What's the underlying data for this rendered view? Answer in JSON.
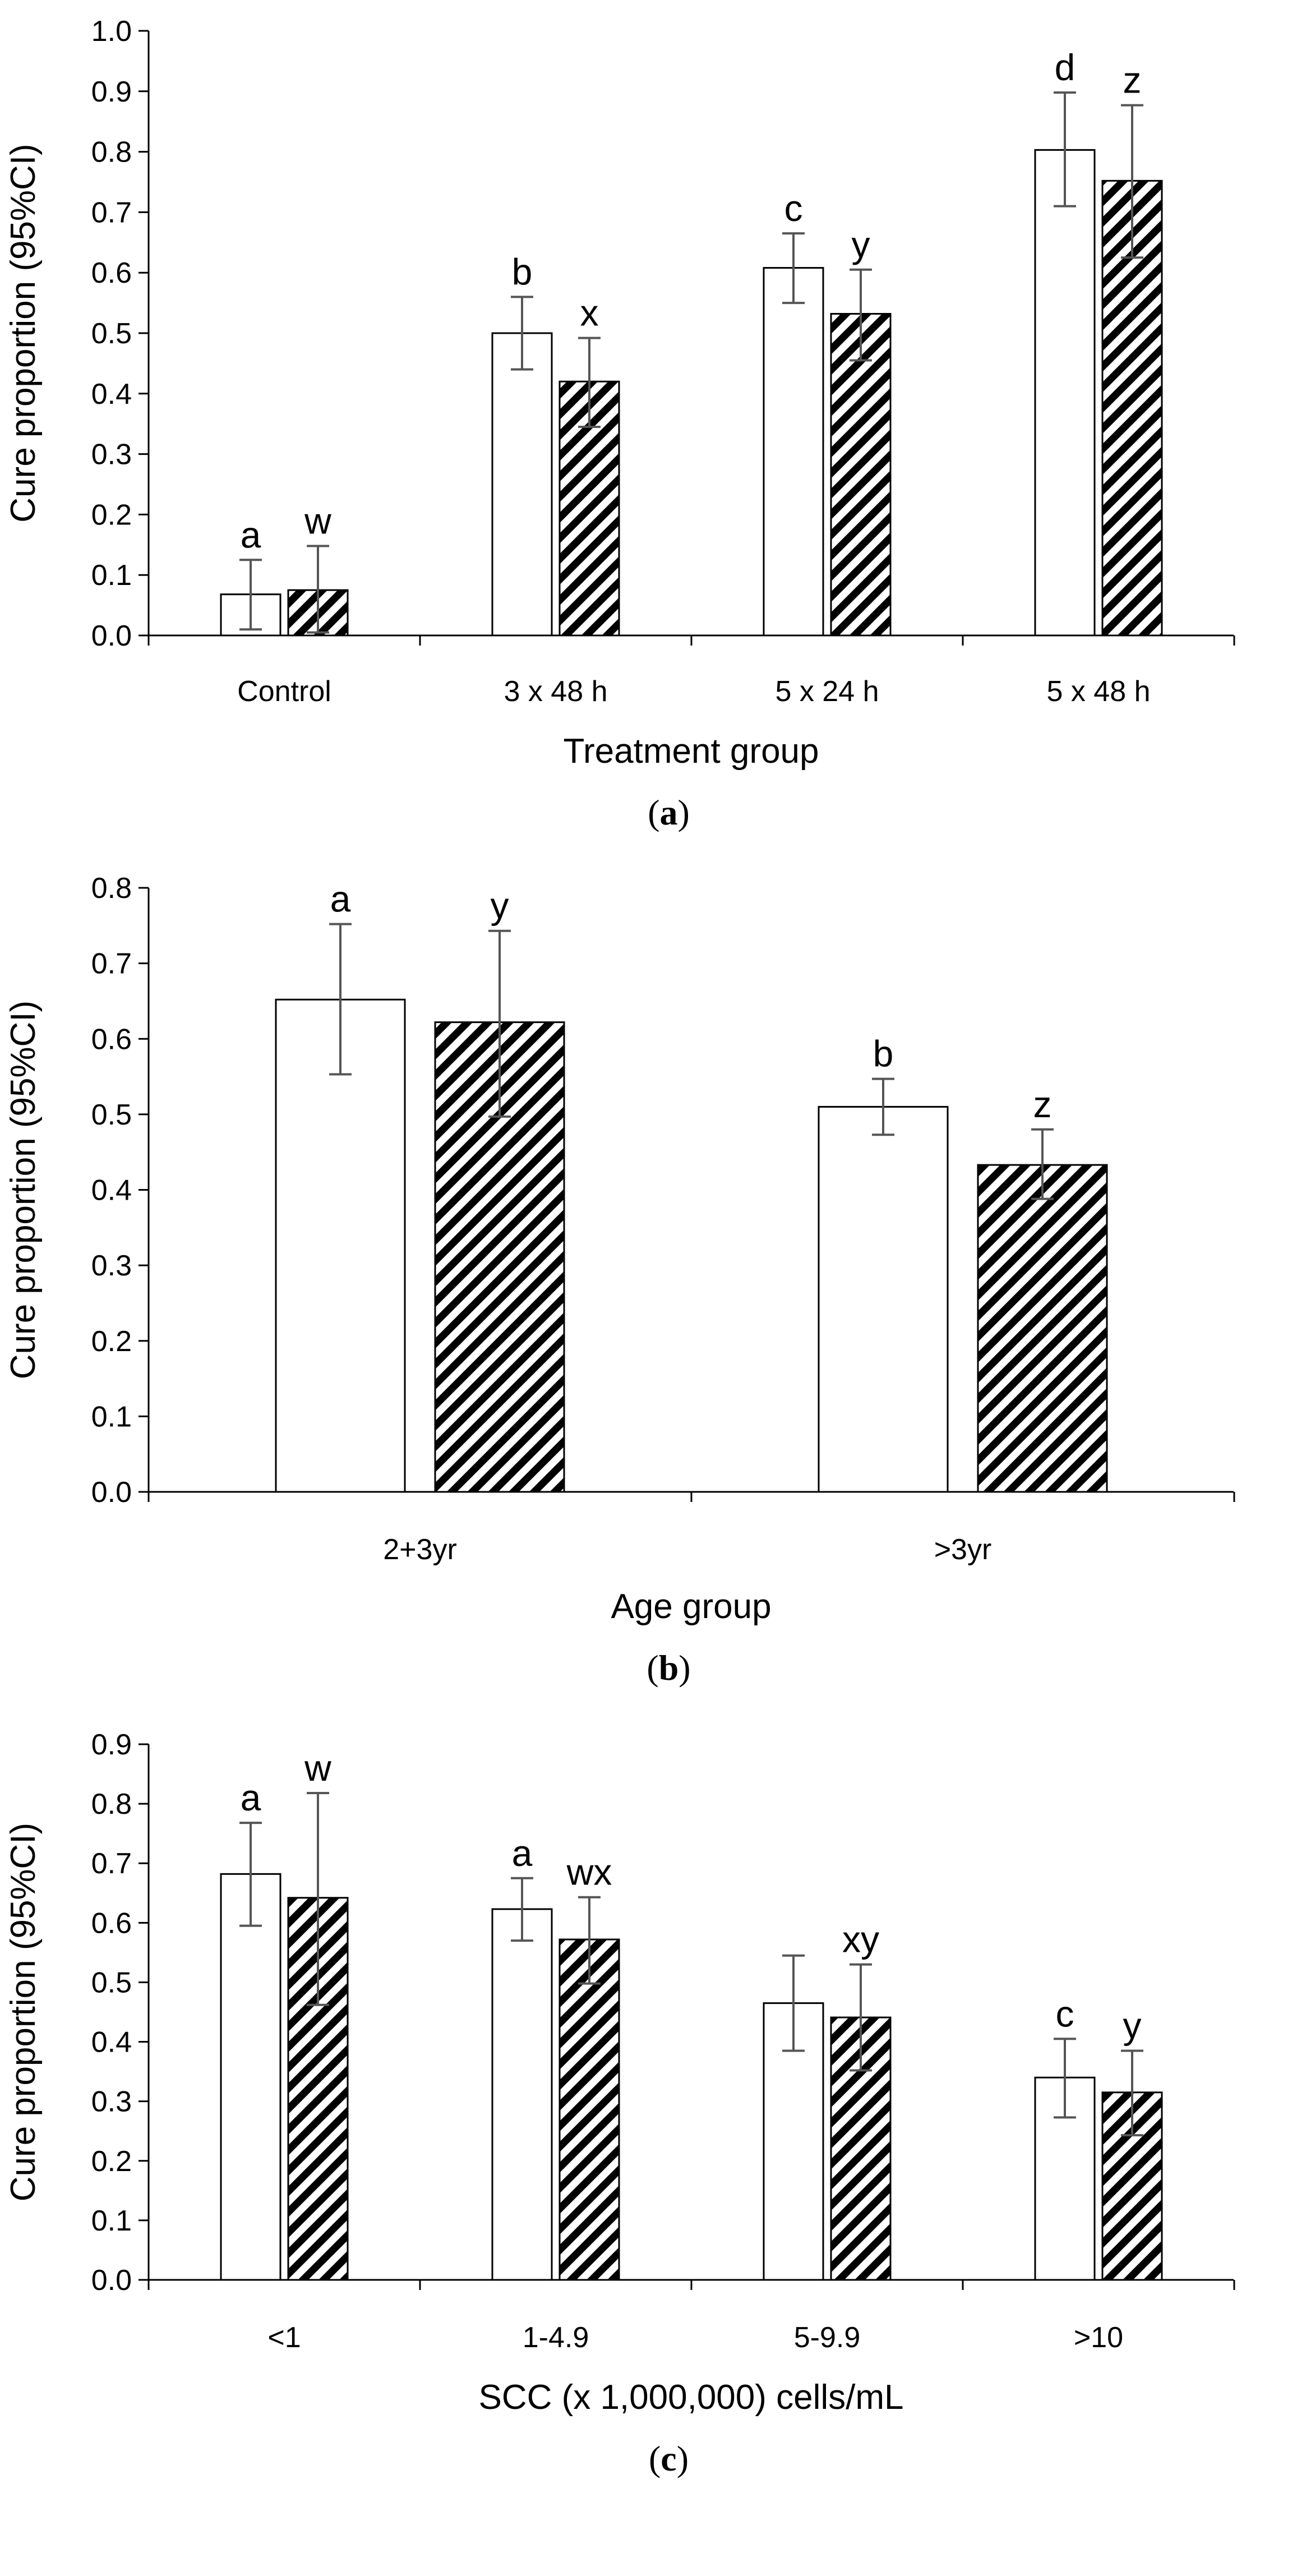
{
  "chart_data": [
    {
      "type": "bar",
      "panel_label": "a",
      "title": "",
      "xlabel": "Treatment group",
      "ylabel": "Cure proportion  (95%CI)",
      "categories": [
        "Control",
        "3 x 48 h",
        "5 x 24 h",
        "5 x 48 h"
      ],
      "ylim": [
        0,
        1.0
      ],
      "yticks": [
        "0.0",
        "0.1",
        "0.2",
        "0.3",
        "0.4",
        "0.5",
        "0.6",
        "0.7",
        "0.8",
        "0.9",
        "1.0"
      ],
      "series": [
        {
          "fill": "white",
          "values": [
            0.068,
            0.5,
            0.608,
            0.803
          ],
          "ci_low": [
            0.01,
            0.44,
            0.55,
            0.71
          ],
          "ci_high": [
            0.125,
            0.56,
            0.665,
            0.898
          ],
          "labels": [
            "a",
            "b",
            "c",
            "d"
          ]
        },
        {
          "fill": "hatched",
          "values": [
            0.075,
            0.42,
            0.532,
            0.752
          ],
          "ci_low": [
            0.005,
            0.345,
            0.455,
            0.625
          ],
          "ci_high": [
            0.148,
            0.492,
            0.605,
            0.877
          ],
          "labels": [
            "w",
            "x",
            "y",
            "z"
          ]
        }
      ],
      "legend": "none",
      "grid": false
    },
    {
      "type": "bar",
      "panel_label": "b",
      "title": "",
      "xlabel": "Age group",
      "ylabel": "Cure proportion  (95%CI)",
      "categories": [
        "2+3yr",
        ">3yr"
      ],
      "ylim": [
        0,
        0.8
      ],
      "yticks": [
        "0.0",
        "0.1",
        "0.2",
        "0.3",
        "0.4",
        "0.5",
        "0.6",
        "0.7",
        "0.8"
      ],
      "series": [
        {
          "fill": "white",
          "values": [
            0.652,
            0.51
          ],
          "ci_low": [
            0.553,
            0.473
          ],
          "ci_high": [
            0.752,
            0.547
          ],
          "labels": [
            "a",
            "b"
          ]
        },
        {
          "fill": "hatched",
          "values": [
            0.622,
            0.433
          ],
          "ci_low": [
            0.497,
            0.388
          ],
          "ci_high": [
            0.743,
            0.48
          ],
          "labels": [
            "y",
            "z"
          ]
        }
      ],
      "legend": "none",
      "grid": false
    },
    {
      "type": "bar",
      "panel_label": "c",
      "title": "",
      "xlabel": "SCC (x 1,000,000) cells/mL",
      "ylabel": "Cure proportion  (95%CI)",
      "categories": [
        "<1",
        "1-4.9",
        "5-9.9",
        ">10"
      ],
      "ylim": [
        0,
        0.9
      ],
      "yticks": [
        "0.0",
        "0.1",
        "0.2",
        "0.3",
        "0.4",
        "0.5",
        "0.6",
        "0.7",
        "0.8",
        "0.9"
      ],
      "series": [
        {
          "fill": "white",
          "values": [
            0.682,
            0.623,
            0.465,
            0.34
          ],
          "ci_low": [
            0.595,
            0.57,
            0.385,
            0.273
          ],
          "ci_high": [
            0.768,
            0.675,
            0.545,
            0.405
          ],
          "labels": [
            "a",
            "a",
            "",
            "c"
          ]
        },
        {
          "fill": "hatched",
          "values": [
            0.642,
            0.572,
            0.441,
            0.315
          ],
          "ci_low": [
            0.462,
            0.498,
            0.352,
            0.243
          ],
          "ci_high": [
            0.818,
            0.643,
            0.53,
            0.385
          ],
          "labels": [
            "w",
            "wx",
            "xy",
            "y"
          ]
        }
      ],
      "legend": "none",
      "grid": false
    }
  ],
  "colors": {
    "axis": "#000000",
    "bar_edge": "#000000",
    "error_bar": "#555555",
    "hatch": "#000000",
    "background": "#ffffff"
  }
}
